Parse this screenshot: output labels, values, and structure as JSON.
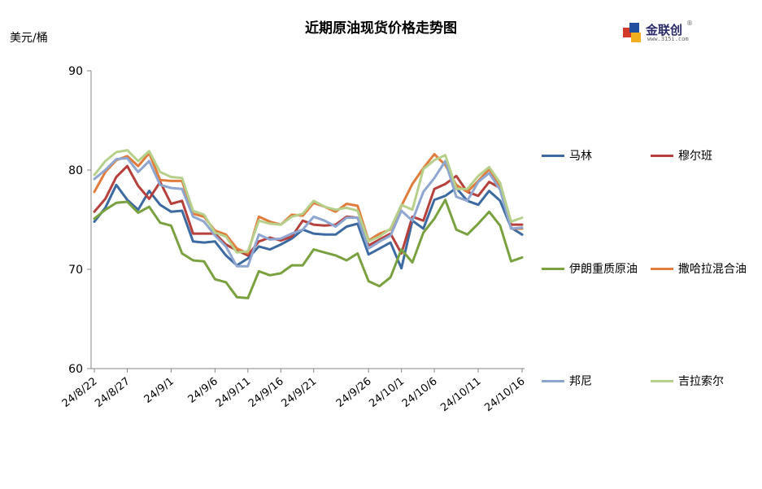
{
  "chart_data": {
    "type": "line",
    "title": "近期原油现货价格走势图",
    "ylabel": "美元/桶",
    "ylim": [
      60,
      90
    ],
    "yticks": [
      60,
      70,
      80,
      90
    ],
    "xtick_labels": [
      "24/8/22",
      "24/8/27",
      "24/9/1",
      "24/9/6",
      "24/9/11",
      "24/9/16",
      "24/9/21",
      "24/9/26",
      "24/10/1",
      "24/10/6",
      "24/10/11",
      "24/10/16"
    ],
    "grid": false,
    "legend_position": "right",
    "x": [
      "24/8/22",
      "24/8/23",
      "24/8/26",
      "24/8/27",
      "24/8/28",
      "24/8/29",
      "24/8/30",
      "24/9/2",
      "24/9/3",
      "24/9/4",
      "24/9/5",
      "24/9/6",
      "24/9/9",
      "24/9/10",
      "24/9/11",
      "24/9/12",
      "24/9/13",
      "24/9/16",
      "24/9/17",
      "24/9/18",
      "24/9/19",
      "24/9/20",
      "24/9/23",
      "24/9/24",
      "24/9/25",
      "24/9/26",
      "24/9/27",
      "24/9/30",
      "24/10/1",
      "24/10/2",
      "24/10/3",
      "24/10/4",
      "24/10/7",
      "24/10/8",
      "24/10/9",
      "24/10/10",
      "24/10/11",
      "24/10/14",
      "24/10/15",
      "24/10/16"
    ],
    "series": [
      {
        "name": "马林",
        "color": "#3d6aa0",
        "values": [
          74.8,
          76.2,
          78.5,
          77.0,
          76.0,
          77.9,
          76.5,
          75.8,
          75.9,
          72.8,
          72.7,
          72.8,
          71.4,
          70.4,
          71.1,
          72.3,
          72.0,
          72.5,
          73.1,
          74.0,
          73.6,
          73.5,
          73.5,
          74.3,
          74.6,
          71.5,
          72.1,
          72.7,
          70.1,
          74.9,
          74.1,
          77.0,
          77.4,
          78.2,
          76.9,
          76.5,
          77.9,
          76.9,
          74.2,
          73.5
        ]
      },
      {
        "name": "穆尔班",
        "color": "#b6403c",
        "values": [
          75.8,
          77.1,
          79.3,
          80.4,
          78.4,
          77.1,
          78.8,
          76.6,
          76.9,
          73.6,
          73.6,
          73.6,
          72.5,
          71.9,
          71.4,
          72.8,
          73.2,
          72.9,
          73.3,
          74.9,
          74.5,
          74.4,
          74.5,
          75.3,
          75.2,
          72.4,
          73.0,
          73.6,
          71.6,
          75.3,
          74.9,
          78.1,
          78.6,
          79.4,
          77.8,
          77.4,
          78.8,
          78.2,
          74.5,
          74.5
        ]
      },
      {
        "name": "伊朗重质原油",
        "color": "#7aa140",
        "values": [
          75.1,
          76.0,
          76.7,
          76.8,
          75.7,
          76.3,
          74.7,
          74.4,
          71.6,
          70.9,
          70.8,
          69.0,
          68.7,
          67.2,
          67.1,
          69.8,
          69.4,
          69.6,
          70.4,
          70.4,
          72.0,
          71.7,
          71.4,
          70.9,
          71.6,
          68.8,
          68.3,
          69.2,
          72.0,
          70.7,
          73.7,
          75.1,
          77.0,
          74.0,
          73.5,
          74.6,
          75.8,
          74.4,
          70.8,
          71.2
        ]
      },
      {
        "name": "撒哈拉混合油",
        "color": "#e07c3c",
        "values": [
          77.8,
          79.8,
          81.0,
          81.4,
          80.4,
          81.7,
          79.0,
          78.9,
          78.9,
          75.6,
          75.3,
          73.9,
          73.5,
          72.1,
          71.6,
          75.3,
          74.8,
          74.5,
          75.5,
          75.4,
          76.7,
          76.3,
          75.8,
          76.6,
          76.4,
          72.9,
          73.6,
          74.0,
          76.4,
          78.6,
          80.2,
          81.6,
          80.5,
          78.5,
          77.8,
          78.9,
          80.1,
          78.2,
          74.1,
          74.1
        ]
      },
      {
        "name": "邦尼",
        "color": "#8ea6d0",
        "values": [
          79.1,
          80.0,
          81.1,
          81.2,
          79.8,
          80.9,
          78.5,
          78.2,
          78.1,
          75.3,
          74.8,
          73.4,
          72.3,
          70.3,
          70.3,
          73.5,
          73.0,
          73.1,
          73.6,
          74.0,
          75.3,
          74.9,
          74.3,
          75.2,
          75.2,
          72.1,
          72.8,
          73.4,
          75.9,
          74.9,
          77.8,
          79.2,
          80.9,
          77.3,
          76.9,
          78.8,
          79.7,
          78.0,
          74.1,
          74.2
        ]
      },
      {
        "name": "吉拉索尔",
        "color": "#b6d08c",
        "values": [
          79.5,
          80.9,
          81.8,
          82.0,
          80.9,
          81.9,
          79.8,
          79.3,
          79.2,
          75.9,
          75.5,
          73.7,
          73.3,
          71.7,
          71.8,
          74.9,
          74.6,
          74.5,
          75.3,
          75.6,
          76.9,
          76.3,
          76.0,
          76.2,
          75.9,
          72.8,
          73.3,
          74.1,
          76.5,
          76.0,
          80.1,
          81.0,
          81.5,
          78.1,
          78.1,
          79.4,
          80.3,
          78.7,
          74.8,
          75.2
        ]
      }
    ]
  },
  "logo": {
    "name": "金联创",
    "sub": "www.315i.com",
    "reg": "®"
  }
}
